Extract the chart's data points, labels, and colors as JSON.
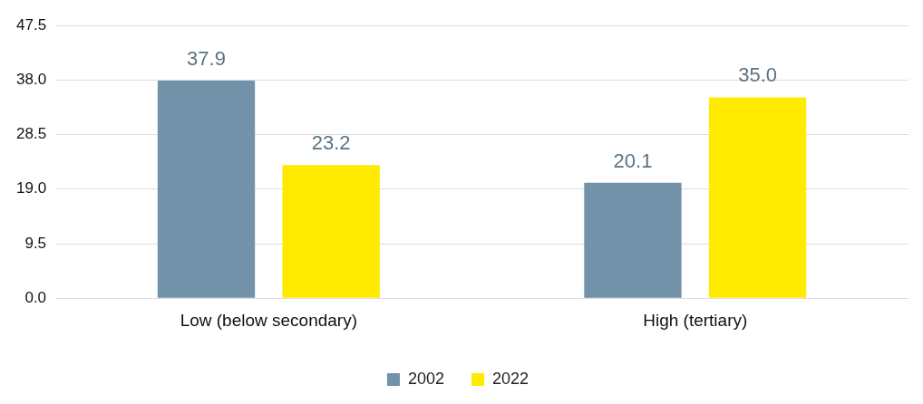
{
  "chart_data": {
    "type": "bar",
    "categories": [
      "Low (below secondary)",
      "High (tertiary)"
    ],
    "series": [
      {
        "name": "2002",
        "color": "#7192a8",
        "values": [
          37.9,
          20.1
        ],
        "value_labels": [
          "37.9",
          "20.1"
        ]
      },
      {
        "name": "2022",
        "color": "#ffea00",
        "values": [
          23.2,
          35.0
        ],
        "value_labels": [
          "23.2",
          "35.0"
        ]
      }
    ],
    "ylim": [
      0,
      47.5
    ],
    "yticks": [
      {
        "value": 0,
        "label": "0.0"
      },
      {
        "value": 9.5,
        "label": "9.5"
      },
      {
        "value": 19,
        "label": "19.0"
      },
      {
        "value": 28.5,
        "label": "28.5"
      },
      {
        "value": 38,
        "label": "38.0"
      },
      {
        "value": 47.5,
        "label": "47.5"
      }
    ],
    "grid": "y",
    "legend": "bottom"
  }
}
